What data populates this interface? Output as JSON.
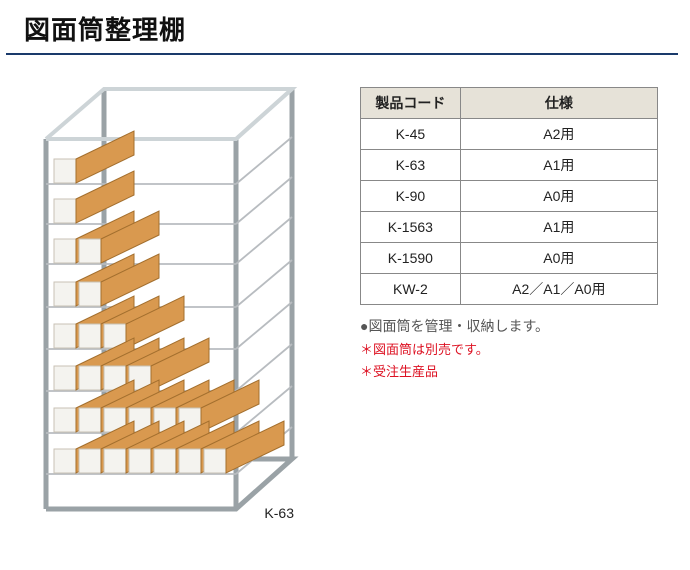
{
  "title": "図面筒整理棚",
  "image_caption": "K-63",
  "table": {
    "columns": [
      "製品コード",
      "仕様"
    ],
    "rows": [
      [
        "K-45",
        "A2用"
      ],
      [
        "K-63",
        "A1用"
      ],
      [
        "K-90",
        "A0用"
      ],
      [
        "K-1563",
        "A1用"
      ],
      [
        "K-1590",
        "A0用"
      ],
      [
        "KW-2",
        "A2／A1／A0用"
      ]
    ],
    "header_bg": "#e6e2d8",
    "border_color": "#888888"
  },
  "notes": {
    "line1": "●図面筒を管理・収納します。",
    "line2": "＊図面筒は別売です。",
    "line3": "＊受注生産品"
  },
  "colors": {
    "title_border": "#1a3a6b",
    "note_red": "#dd1122",
    "note_gray": "#555555"
  }
}
